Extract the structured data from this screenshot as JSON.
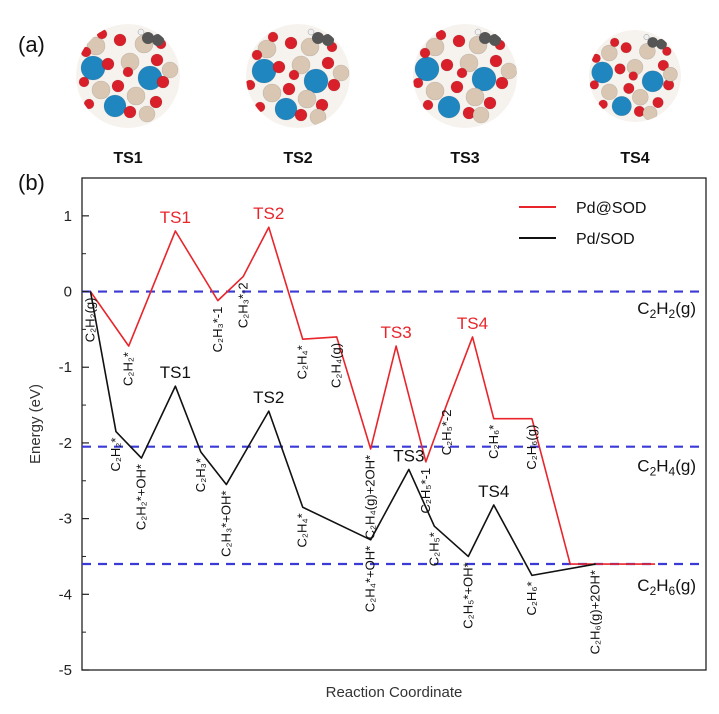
{
  "panel_a": {
    "label": "(a)",
    "structures": [
      {
        "label": "TS1"
      },
      {
        "label": "TS2"
      },
      {
        "label": "TS3"
      },
      {
        "label": "TS4"
      }
    ]
  },
  "panel_b_label": "(b)",
  "colors": {
    "pd_at_sod": "#e8252b",
    "pd_on_sod": "#111111",
    "reference_line": "#3a3ad6",
    "si": "#d9c7b3",
    "o": "#d9202a",
    "pd": "#1f86c0",
    "c": "#555555",
    "h": "#f0f0f0"
  },
  "chart_data": {
    "type": "line",
    "xlabel": "Reaction Coordinate",
    "ylabel": "Energy (eV)",
    "ylim": [
      -5,
      1.5
    ],
    "yticks": [
      "1",
      "0",
      "-1",
      "-2",
      "-3",
      "-4",
      "-5"
    ],
    "grid": false,
    "legend_position": "top-right",
    "reference_lines": [
      {
        "value": 0.0,
        "label": "C2H2(g)"
      },
      {
        "value": -2.05,
        "label": "C2H4(g)"
      },
      {
        "value": -3.6,
        "label": "C2H6(g)"
      }
    ],
    "series": [
      {
        "name": "Pd@SOD",
        "x": [
          0,
          0.9,
          2,
          3,
          3.6,
          4.2,
          5,
          5.8,
          6.6,
          7.2,
          7.9,
          8.4,
          9.0,
          9.5,
          10.4,
          11.3,
          11.9,
          13.3
        ],
        "y": [
          0.0,
          -0.72,
          0.8,
          -0.12,
          0.2,
          0.85,
          -0.63,
          -0.6,
          -2.08,
          -0.72,
          -2.25,
          -1.48,
          -0.6,
          -1.68,
          -1.68,
          -3.6,
          -3.6,
          -3.6
        ]
      },
      {
        "name": "Pd/SOD",
        "x": [
          0,
          0.6,
          1.2,
          2,
          2.6,
          3.2,
          4.2,
          5.0,
          6.6,
          7.5,
          8.1,
          8.9,
          9.5,
          10.4,
          11.9
        ],
        "y": [
          0.0,
          -1.85,
          -2.2,
          -1.25,
          -2.12,
          -2.55,
          -1.58,
          -2.85,
          -3.28,
          -2.35,
          -3.1,
          -3.5,
          -2.82,
          -3.75,
          -3.6
        ]
      }
    ],
    "ts_labels": [
      {
        "series": "Pd@SOD",
        "text": "TS1",
        "x": 2,
        "y": 0.8
      },
      {
        "series": "Pd@SOD",
        "text": "TS2",
        "x": 4.2,
        "y": 0.85
      },
      {
        "series": "Pd@SOD",
        "text": "TS3",
        "x": 7.2,
        "y": -0.72
      },
      {
        "series": "Pd@SOD",
        "text": "TS4",
        "x": 9.0,
        "y": -0.6
      },
      {
        "series": "Pd/SOD",
        "text": "TS1",
        "x": 2,
        "y": -1.25
      },
      {
        "series": "Pd/SOD",
        "text": "TS2",
        "x": 4.2,
        "y": -1.58
      },
      {
        "series": "Pd/SOD",
        "text": "TS3",
        "x": 7.5,
        "y": -2.35
      },
      {
        "series": "Pd/SOD",
        "text": "TS4",
        "x": 9.5,
        "y": -2.82
      }
    ],
    "state_labels": [
      {
        "text": "C₂H₂(g)",
        "x": 0,
        "y": 0.0
      },
      {
        "text": "C₂H₂*",
        "x": 0.9,
        "y": -0.72
      },
      {
        "text": "C₂H₃*-1",
        "x": 3,
        "y": -0.12
      },
      {
        "text": "C₂H₃*-2",
        "x": 3.6,
        "y": 0.2
      },
      {
        "text": "C₂H₄*",
        "x": 5,
        "y": -0.63
      },
      {
        "text": "C₂H₄(g)",
        "x": 5.8,
        "y": -0.6
      },
      {
        "text": "C₂H₄(g)+2OH*",
        "x": 6.6,
        "y": -2.08
      },
      {
        "text": "C₂H₅*-1",
        "x": 7.9,
        "y": -2.25
      },
      {
        "text": "C₂H₅*-2",
        "x": 8.4,
        "y": -1.48
      },
      {
        "text": "C₂H₆*",
        "x": 9.5,
        "y": -1.68
      },
      {
        "text": "C₂H₆(g)",
        "x": 10.4,
        "y": -1.68
      },
      {
        "text": "C₂H₂*",
        "x": 0.6,
        "y": -1.85
      },
      {
        "text": "C₂H₂*+OH*",
        "x": 1.2,
        "y": -2.2
      },
      {
        "text": "C₂H₃*",
        "x": 2.6,
        "y": -2.12
      },
      {
        "text": "C₂H₃*+OH*",
        "x": 3.2,
        "y": -2.55
      },
      {
        "text": "C₂H₄*",
        "x": 5.0,
        "y": -2.85
      },
      {
        "text": "C₂H₄*+OH*",
        "x": 6.6,
        "y": -3.28
      },
      {
        "text": "C₂H₅*",
        "x": 8.1,
        "y": -3.1
      },
      {
        "text": "C₂H₅*+OH*",
        "x": 8.9,
        "y": -3.5
      },
      {
        "text": "C₂H₆*",
        "x": 10.4,
        "y": -3.75
      },
      {
        "text": "C₂H₆(g)+2OH*",
        "x": 11.9,
        "y": -3.6
      }
    ]
  }
}
